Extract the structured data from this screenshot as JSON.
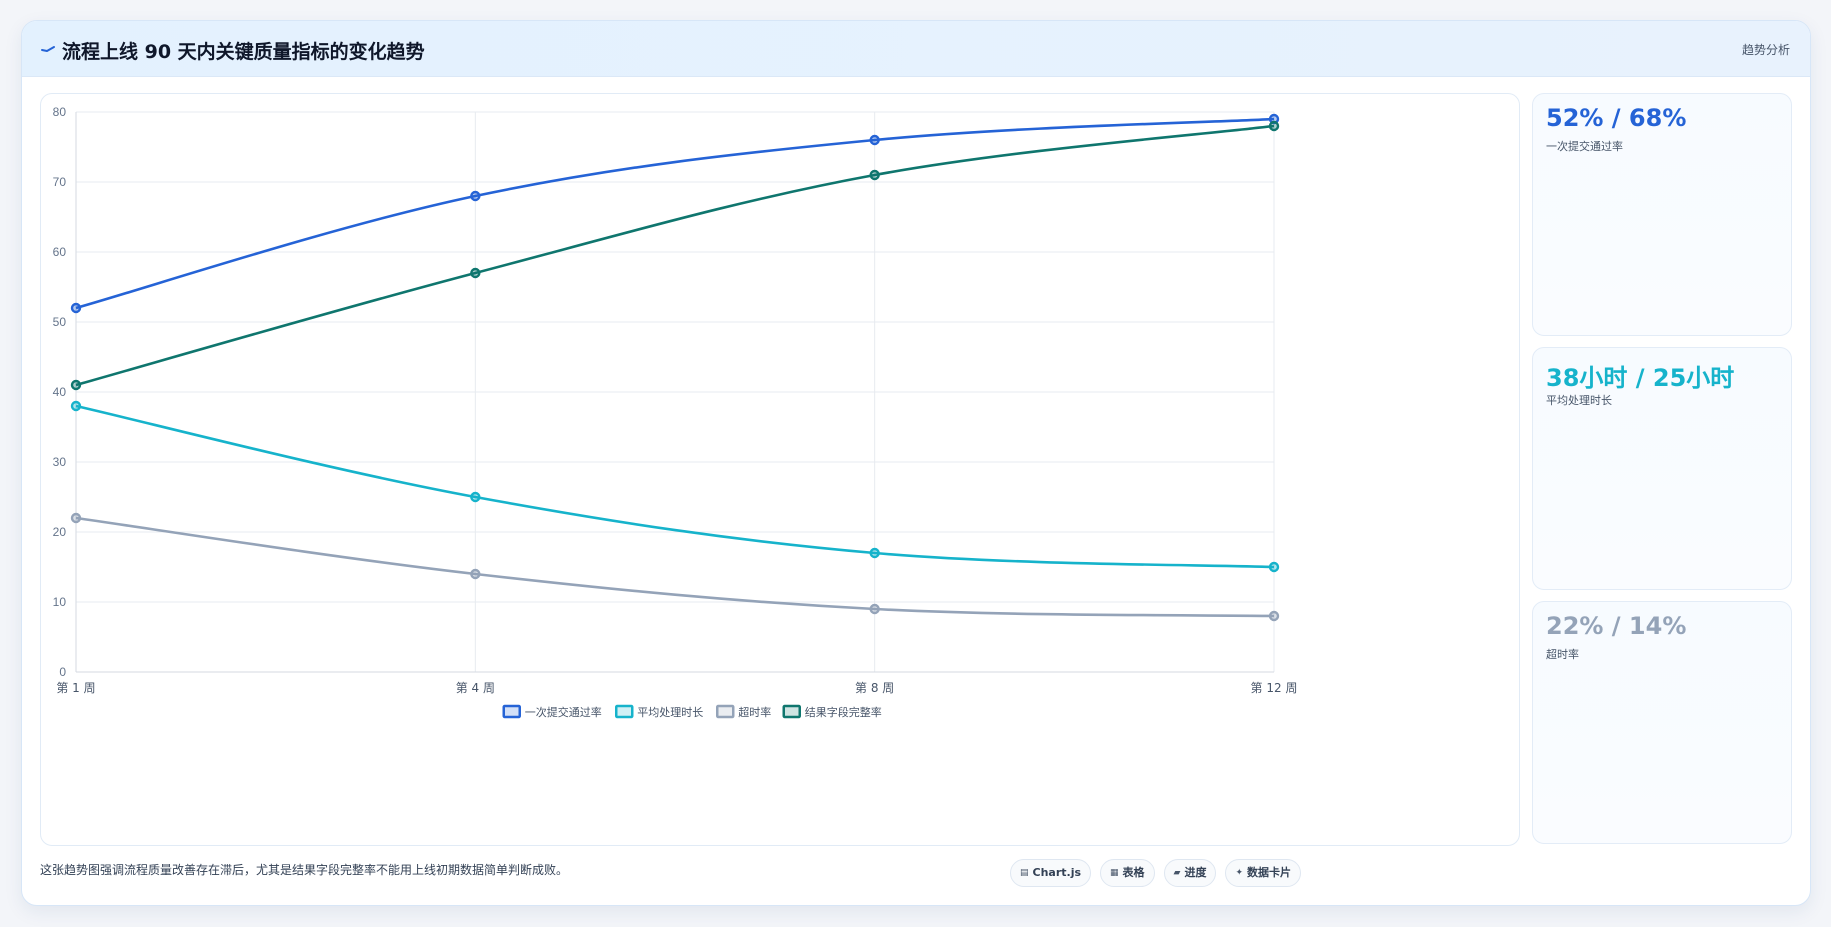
{
  "header": {
    "title": "流程上线 90 天内关键质量指标的变化趋势",
    "tag": "趋势分析"
  },
  "kpis": [
    {
      "value": "52% / 68%",
      "label": "一次提交通过率",
      "color": "#2563d6"
    },
    {
      "value": "38小时 / 25小时",
      "label": "平均处理时长",
      "color": "#16b3cb"
    },
    {
      "value": "22% / 14%",
      "label": "超时率",
      "color": "#94a3b8"
    }
  ],
  "footer": {
    "note": "这张趋势图强调流程质量改善存在滞后，尤其是结果字段完整率不能用上线初期数据简单判断成败。",
    "chips": [
      {
        "icon": "chart-icon",
        "glyph": "▤",
        "label": "Chart.js"
      },
      {
        "icon": "table-icon",
        "glyph": "▦",
        "label": "表格"
      },
      {
        "icon": "progress-icon",
        "glyph": "▰",
        "label": "进度"
      },
      {
        "icon": "card-icon",
        "glyph": "✦",
        "label": "数据卡片"
      }
    ]
  },
  "chart_data": {
    "type": "line",
    "categories": [
      "第 1 周",
      "第 4 周",
      "第 8 周",
      "第 12 周"
    ],
    "ylim": [
      0,
      80
    ],
    "yticks": [
      0,
      10,
      20,
      30,
      40,
      50,
      60,
      70,
      80
    ],
    "grid": true,
    "legend_position": "bottom",
    "series": [
      {
        "name": "一次提交通过率",
        "values": [
          52,
          68,
          76,
          79
        ],
        "color": "#2563d6"
      },
      {
        "name": "平均处理时长",
        "values": [
          38,
          25,
          17,
          15
        ],
        "color": "#16b3cb"
      },
      {
        "name": "超时率",
        "values": [
          22,
          14,
          9,
          8
        ],
        "color": "#94a3b8"
      },
      {
        "name": "结果字段完整率",
        "values": [
          41,
          57,
          71,
          78
        ],
        "color": "#0f766e"
      }
    ]
  }
}
